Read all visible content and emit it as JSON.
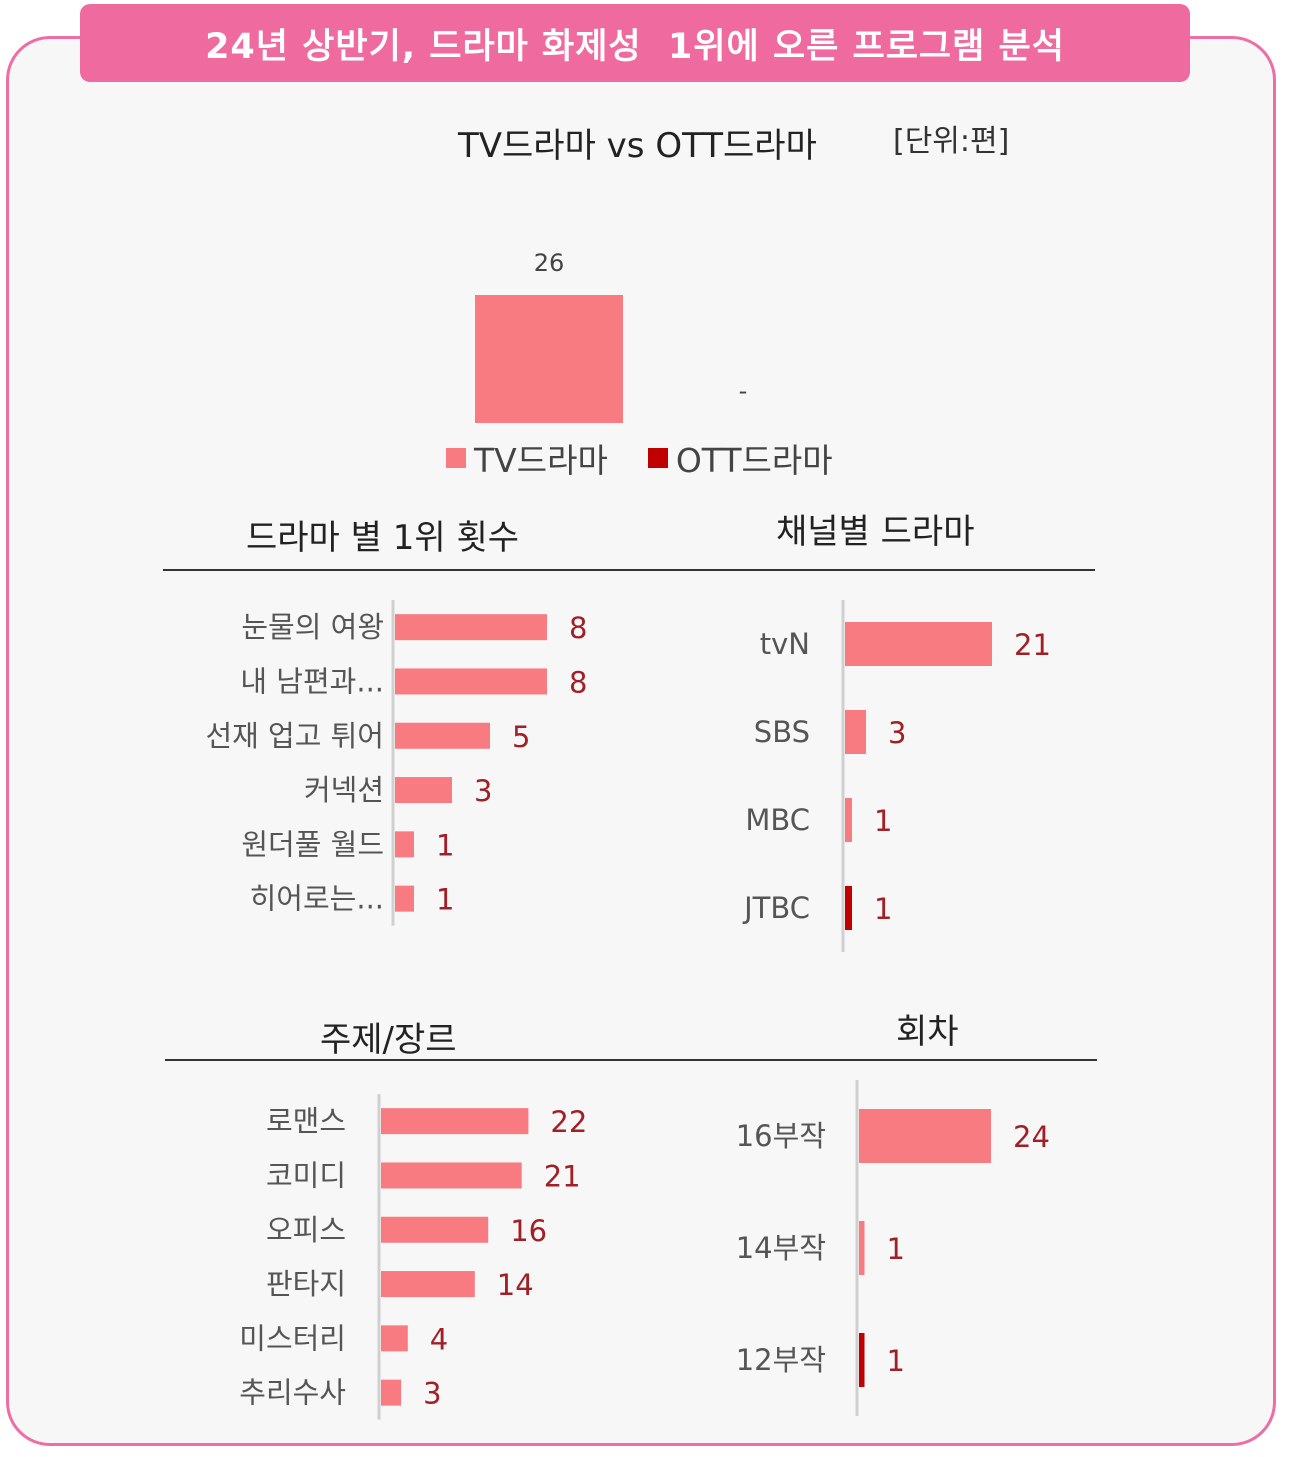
{
  "banner": {
    "title": "24년 상반기, 드라마 화제성  1위에 오른 프로그램 분석"
  },
  "colors": {
    "tv": "#f77b80",
    "ott": "#c00000",
    "val": "#a12026",
    "frame": "#ee6ea3"
  },
  "chart_data": [
    {
      "id": "tv-vs-ott",
      "type": "bar",
      "title": "TV드라마 vs OTT드라마",
      "unit_label": "[단위:편]",
      "categories": [
        "TV드라마",
        "OTT드라마"
      ],
      "series": [
        {
          "name": "TV드라마",
          "values": [
            26,
            null
          ],
          "labels": [
            "26",
            ""
          ]
        },
        {
          "name": "OTT드라마",
          "values": [
            null,
            0
          ],
          "labels": [
            "",
            "-"
          ]
        }
      ],
      "legend": "bottom"
    },
    {
      "id": "by-drama",
      "type": "bar",
      "orientation": "horizontal",
      "title": "드라마 별 1위 횟수",
      "categories": [
        "눈물의 여왕",
        "내 남편과...",
        "선재 업고 튀어",
        "커넥션",
        "원더풀 월드",
        "히어로는..."
      ],
      "values": [
        8,
        8,
        5,
        3,
        1,
        1
      ]
    },
    {
      "id": "by-channel",
      "type": "bar",
      "orientation": "horizontal",
      "title": "채널별 드라마",
      "categories": [
        "tvN",
        "SBS",
        "MBC",
        "JTBC"
      ],
      "values": [
        21,
        3,
        1,
        1
      ],
      "colors": [
        "tv",
        "tv",
        "tv",
        "ott"
      ]
    },
    {
      "id": "by-genre",
      "type": "bar",
      "orientation": "horizontal",
      "title": "주제/장르",
      "categories": [
        "로맨스",
        "코미디",
        "오피스",
        "판타지",
        "미스터리",
        "추리수사"
      ],
      "values": [
        22,
        21,
        16,
        14,
        4,
        3
      ]
    },
    {
      "id": "by-episodes",
      "type": "bar",
      "orientation": "horizontal",
      "title": "회차",
      "categories": [
        "16부작",
        "14부작",
        "12부작"
      ],
      "values": [
        24,
        1,
        1
      ],
      "colors": [
        "tv",
        "tv",
        "ott"
      ]
    }
  ]
}
